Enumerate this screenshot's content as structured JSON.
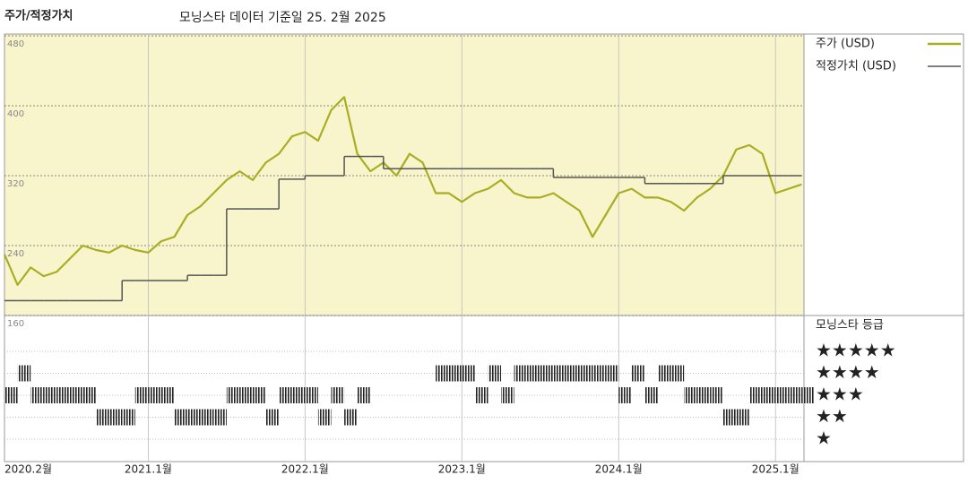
{
  "chart_data": {
    "type": "line",
    "title": "주가/적정가치",
    "subtitle": "모닝스타 데이터 기준일 25. 2월 2025",
    "categories": [
      "2020.2월",
      null,
      null,
      null,
      null,
      null,
      null,
      null,
      null,
      null,
      null,
      "2021.1월",
      null,
      null,
      null,
      null,
      null,
      null,
      null,
      null,
      null,
      null,
      null,
      "2022.1월",
      null,
      null,
      null,
      null,
      null,
      null,
      null,
      null,
      null,
      null,
      null,
      "2023.1월",
      null,
      null,
      null,
      null,
      null,
      null,
      null,
      null,
      null,
      null,
      null,
      "2024.1월",
      null,
      null,
      null,
      null,
      null,
      null,
      null,
      null,
      null,
      null,
      null,
      "2025.1월",
      null,
      null
    ],
    "series": [
      {
        "name": "주가 (USD)",
        "color": "#a8ad22",
        "values": [
          230,
          195,
          215,
          205,
          210,
          225,
          240,
          235,
          232,
          240,
          235,
          232,
          245,
          250,
          275,
          285,
          300,
          315,
          325,
          315,
          335,
          345,
          365,
          370,
          360,
          395,
          410,
          345,
          325,
          335,
          320,
          345,
          335,
          300,
          300,
          290,
          300,
          305,
          315,
          300,
          295,
          295,
          300,
          290,
          280,
          250,
          275,
          300,
          305,
          295,
          295,
          290,
          280,
          295,
          305,
          320,
          350,
          355,
          345,
          300,
          305,
          310
        ]
      },
      {
        "name": "적정가치 (USD)",
        "color": "#555555",
        "step": true,
        "values": [
          177,
          177,
          177,
          177,
          177,
          177,
          177,
          177,
          177,
          200,
          200,
          200,
          200,
          200,
          206,
          206,
          206,
          282,
          282,
          282,
          282,
          316,
          316,
          320,
          320,
          320,
          342,
          342,
          342,
          328,
          328,
          328,
          328,
          328,
          328,
          328,
          328,
          328,
          328,
          328,
          328,
          328,
          318,
          318,
          318,
          318,
          318,
          318,
          318,
          311,
          311,
          311,
          311,
          311,
          311,
          320,
          320,
          320,
          320,
          320,
          320,
          320
        ]
      }
    ],
    "ylim": [
      160,
      480
    ],
    "yticks": [
      160,
      240,
      320,
      400,
      480
    ],
    "grid": true,
    "rating_title": "모닝스타 등급",
    "rating_labels": [
      "★★★★★",
      "★★★★",
      "★★★",
      "★★",
      "★"
    ],
    "ratings": [
      3,
      4,
      3,
      3,
      3,
      3,
      3,
      2,
      2,
      2,
      3,
      3,
      3,
      2,
      2,
      2,
      2,
      3,
      3,
      3,
      2,
      3,
      3,
      3,
      2,
      3,
      2,
      3,
      null,
      null,
      null,
      null,
      null,
      4,
      4,
      4,
      3,
      4,
      3,
      4,
      4,
      4,
      4,
      4,
      4,
      4,
      4,
      3,
      4,
      3,
      4,
      4,
      3,
      3,
      3,
      2,
      2,
      3,
      3,
      3,
      3,
      3
    ]
  }
}
